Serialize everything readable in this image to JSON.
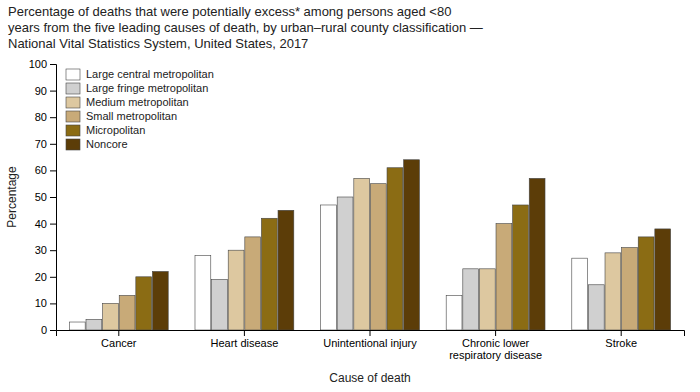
{
  "chart_data": {
    "type": "bar",
    "title": "Percentage of deaths that were potentially excess* among persons aged <80\nyears from the five leading causes of death, by urban–rural county classification —\nNational Vital Statistics System, United States, 2017",
    "categories": [
      "Cancer",
      "Heart disease",
      "Unintentional injury",
      "Chronic lower\nrespiratory disease",
      "Stroke"
    ],
    "series": [
      {
        "name": "Large central metropolitan",
        "color": "#ffffff",
        "values": [
          3,
          28,
          47,
          13,
          27
        ]
      },
      {
        "name": "Large fringe metropolitan",
        "color": "#d0d0d0",
        "values": [
          4,
          19,
          50,
          23,
          17
        ]
      },
      {
        "name": "Medium metropolitan",
        "color": "#ddc8a0",
        "values": [
          10,
          30,
          57,
          23,
          29
        ]
      },
      {
        "name": "Small metropolitan",
        "color": "#c8aa78",
        "values": [
          13,
          35,
          55,
          40,
          31
        ]
      },
      {
        "name": "Micropolitan",
        "color": "#8b6c14",
        "values": [
          20,
          42,
          61,
          47,
          35
        ]
      },
      {
        "name": "Noncore",
        "color": "#5c3d08",
        "values": [
          22,
          45,
          64,
          57,
          38
        ]
      }
    ],
    "ylabel": "Percentage",
    "xlabel": "Cause of death",
    "ylim": [
      0,
      100
    ],
    "yticks": [
      0,
      10,
      20,
      30,
      40,
      50,
      60,
      70,
      80,
      90,
      100
    ],
    "grid": false,
    "legend": "upper-left"
  }
}
